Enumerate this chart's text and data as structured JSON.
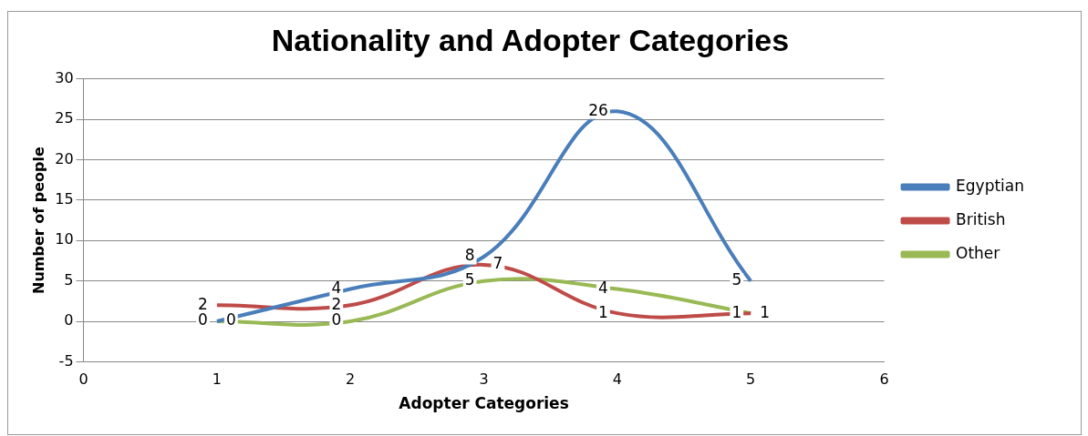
{
  "chart_data": {
    "type": "line",
    "title": "Nationality and Adopter Categories",
    "xlabel": "Adopter Categories",
    "ylabel": "Number of people",
    "x": [
      1,
      2,
      3,
      4,
      5
    ],
    "series": [
      {
        "name": "Egyptian",
        "color": "#4a7ebb",
        "values": [
          0,
          4,
          8,
          26,
          5
        ]
      },
      {
        "name": "British",
        "color": "#be4b48",
        "values": [
          2,
          2,
          7,
          1,
          1
        ]
      },
      {
        "name": "Other",
        "color": "#98b954",
        "values": [
          0,
          0,
          5,
          4,
          1
        ]
      }
    ],
    "xlim": [
      0,
      6
    ],
    "xticks": [
      0,
      1,
      2,
      3,
      4,
      5,
      6
    ],
    "ylim": [
      -5,
      30
    ],
    "yticks": [
      -5,
      0,
      5,
      10,
      15,
      20,
      25,
      30
    ],
    "grid": "y",
    "legend": "right",
    "marker": "none",
    "line_style": "solid",
    "data_labels": true
  }
}
